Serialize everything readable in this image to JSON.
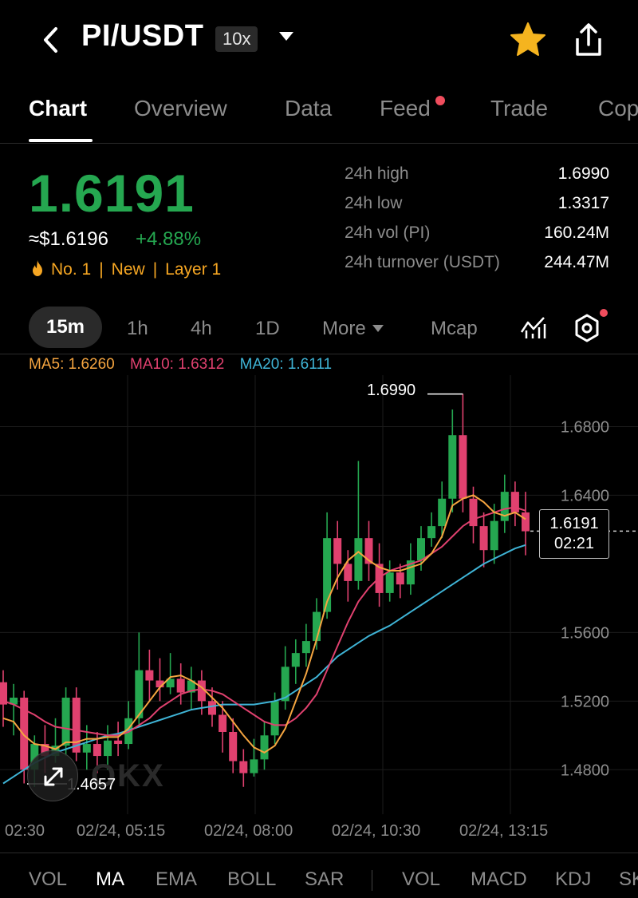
{
  "header": {
    "pair": "PI/USDT",
    "leverage": "10x"
  },
  "tabs": [
    "Chart",
    "Overview",
    "Data",
    "Feed",
    "Trade",
    "Cop"
  ],
  "ticker": {
    "price": "1.6191",
    "usd": "≈$1.6196",
    "change": "+4.88%",
    "rank": "No. 1",
    "tag_new": "New",
    "tag_layer": "Layer 1",
    "stats": [
      {
        "label": "24h high",
        "value": "1.6990"
      },
      {
        "label": "24h low",
        "value": "1.3317"
      },
      {
        "label": "24h vol (PI)",
        "value": "160.24M"
      },
      {
        "label": "24h turnover (USDT)",
        "value": "244.47M"
      }
    ]
  },
  "intervals": {
    "active": "15m",
    "h1": "1h",
    "h4": "4h",
    "d1": "1D",
    "more": "More",
    "mcap": "Mcap"
  },
  "ma_legend": {
    "ma5": "MA5: 1.6260",
    "ma10": "MA10: 1.6312",
    "ma20": "MA20: 1.6111"
  },
  "colors": {
    "up": "#25a750",
    "down": "#e0416f",
    "ma5": "#f5a540",
    "ma10": "#e0416f",
    "ma20": "#3fb4d6",
    "accent": "#f5a623"
  },
  "chart": {
    "current_price": "1.6191",
    "countdown": "02:21",
    "max_label": "1.6990",
    "min_label": "1.4657",
    "watermark": "OKX",
    "y_ticks": [
      "1.6800",
      "1.6400",
      "1.5600",
      "1.5200",
      "1.4800"
    ],
    "x_ticks": [
      "02:30",
      "02/24, 05:15",
      "02/24, 08:00",
      "02/24, 10:30",
      "02/24, 13:15"
    ]
  },
  "chart_data": {
    "type": "candlestick",
    "ylim": [
      1.455,
      1.71
    ],
    "y_ticks": [
      1.48,
      1.52,
      1.56,
      1.64,
      1.68
    ],
    "candles": [
      [
        1.531,
        1.518,
        1.538,
        1.505
      ],
      [
        1.518,
        1.522,
        1.53,
        1.5
      ],
      [
        1.522,
        1.48,
        1.526,
        1.472
      ],
      [
        1.48,
        1.495,
        1.5,
        1.47
      ],
      [
        1.495,
        1.488,
        1.506,
        1.478
      ],
      [
        1.488,
        1.494,
        1.51,
        1.484
      ],
      [
        1.494,
        1.522,
        1.528,
        1.488
      ],
      [
        1.522,
        1.49,
        1.528,
        1.485
      ],
      [
        1.49,
        1.495,
        1.506,
        1.48
      ],
      [
        1.495,
        1.488,
        1.502,
        1.478
      ],
      [
        1.488,
        1.497,
        1.506,
        1.48
      ],
      [
        1.497,
        1.495,
        1.508,
        1.488
      ],
      [
        1.495,
        1.51,
        1.52,
        1.492
      ],
      [
        1.51,
        1.538,
        1.56,
        1.505
      ],
      [
        1.538,
        1.532,
        1.55,
        1.52
      ],
      [
        1.532,
        1.528,
        1.545,
        1.52
      ],
      [
        1.528,
        1.533,
        1.548,
        1.524
      ],
      [
        1.533,
        1.525,
        1.542,
        1.518
      ],
      [
        1.525,
        1.532,
        1.54,
        1.515
      ],
      [
        1.532,
        1.52,
        1.538,
        1.512
      ],
      [
        1.52,
        1.512,
        1.528,
        1.505
      ],
      [
        1.512,
        1.502,
        1.52,
        1.49
      ],
      [
        1.502,
        1.485,
        1.51,
        1.478
      ],
      [
        1.485,
        1.478,
        1.492,
        1.47
      ],
      [
        1.478,
        1.486,
        1.498,
        1.476
      ],
      [
        1.486,
        1.5,
        1.508,
        1.48
      ],
      [
        1.5,
        1.52,
        1.525,
        1.495
      ],
      [
        1.52,
        1.54,
        1.552,
        1.515
      ],
      [
        1.54,
        1.548,
        1.556,
        1.53
      ],
      [
        1.548,
        1.555,
        1.565,
        1.54
      ],
      [
        1.555,
        1.572,
        1.58,
        1.55
      ],
      [
        1.572,
        1.615,
        1.63,
        1.568
      ],
      [
        1.615,
        1.6,
        1.625,
        1.585
      ],
      [
        1.6,
        1.59,
        1.608,
        1.578
      ],
      [
        1.59,
        1.615,
        1.66,
        1.585
      ],
      [
        1.615,
        1.6,
        1.625,
        1.59
      ],
      [
        1.6,
        1.583,
        1.612,
        1.575
      ],
      [
        1.583,
        1.595,
        1.602,
        1.578
      ],
      [
        1.595,
        1.588,
        1.6,
        1.58
      ],
      [
        1.588,
        1.602,
        1.612,
        1.582
      ],
      [
        1.602,
        1.615,
        1.622,
        1.596
      ],
      [
        1.615,
        1.622,
        1.63,
        1.61
      ],
      [
        1.622,
        1.638,
        1.648,
        1.615
      ],
      [
        1.638,
        1.675,
        1.69,
        1.63
      ],
      [
        1.675,
        1.638,
        1.699,
        1.63
      ],
      [
        1.638,
        1.622,
        1.645,
        1.612
      ],
      [
        1.622,
        1.608,
        1.63,
        1.598
      ],
      [
        1.608,
        1.625,
        1.635,
        1.6
      ],
      [
        1.625,
        1.642,
        1.652,
        1.618
      ],
      [
        1.642,
        1.63,
        1.648,
        1.622
      ],
      [
        1.63,
        1.619,
        1.642,
        1.605
      ]
    ],
    "ma5": [
      1.51,
      1.508,
      1.5,
      1.495,
      1.494,
      1.492,
      1.496,
      1.496,
      1.498,
      1.498,
      1.499,
      1.499,
      1.504,
      1.512,
      1.52,
      1.528,
      1.534,
      1.535,
      1.532,
      1.528,
      1.522,
      1.516,
      1.508,
      1.5,
      1.493,
      1.49,
      1.494,
      1.504,
      1.52,
      1.536,
      1.556,
      1.578,
      1.592,
      1.602,
      1.607,
      1.602,
      1.598,
      1.596,
      1.596,
      1.598,
      1.6,
      1.606,
      1.616,
      1.634,
      1.638,
      1.64,
      1.636,
      1.63,
      1.628,
      1.63,
      1.626
    ],
    "ma10": [
      1.52,
      1.518,
      1.515,
      1.512,
      1.508,
      1.505,
      1.504,
      1.503,
      1.502,
      1.501,
      1.5,
      1.5,
      1.502,
      1.506,
      1.51,
      1.516,
      1.52,
      1.524,
      1.526,
      1.527,
      1.526,
      1.524,
      1.52,
      1.516,
      1.512,
      1.508,
      1.506,
      1.506,
      1.51,
      1.516,
      1.524,
      1.538,
      1.552,
      1.566,
      1.578,
      1.586,
      1.592,
      1.596,
      1.598,
      1.6,
      1.602,
      1.606,
      1.61,
      1.616,
      1.622,
      1.626,
      1.628,
      1.63,
      1.632,
      1.633,
      1.631
    ],
    "ma20": [
      1.472,
      1.476,
      1.48,
      1.484,
      1.487,
      1.49,
      1.492,
      1.494,
      1.496,
      1.498,
      1.5,
      1.501,
      1.503,
      1.505,
      1.507,
      1.509,
      1.511,
      1.513,
      1.515,
      1.516,
      1.517,
      1.518,
      1.518,
      1.518,
      1.518,
      1.519,
      1.52,
      1.522,
      1.526,
      1.53,
      1.534,
      1.54,
      1.546,
      1.55,
      1.554,
      1.558,
      1.561,
      1.564,
      1.568,
      1.572,
      1.576,
      1.58,
      1.584,
      1.588,
      1.592,
      1.596,
      1.6,
      1.603,
      1.606,
      1.609,
      1.611
    ]
  },
  "indicators": {
    "vol": "VOL",
    "ma": "MA",
    "ema": "EMA",
    "boll": "BOLL",
    "sar": "SAR",
    "vol2": "VOL",
    "macd": "MACD",
    "kdj": "KDJ",
    "sk": "SK"
  }
}
